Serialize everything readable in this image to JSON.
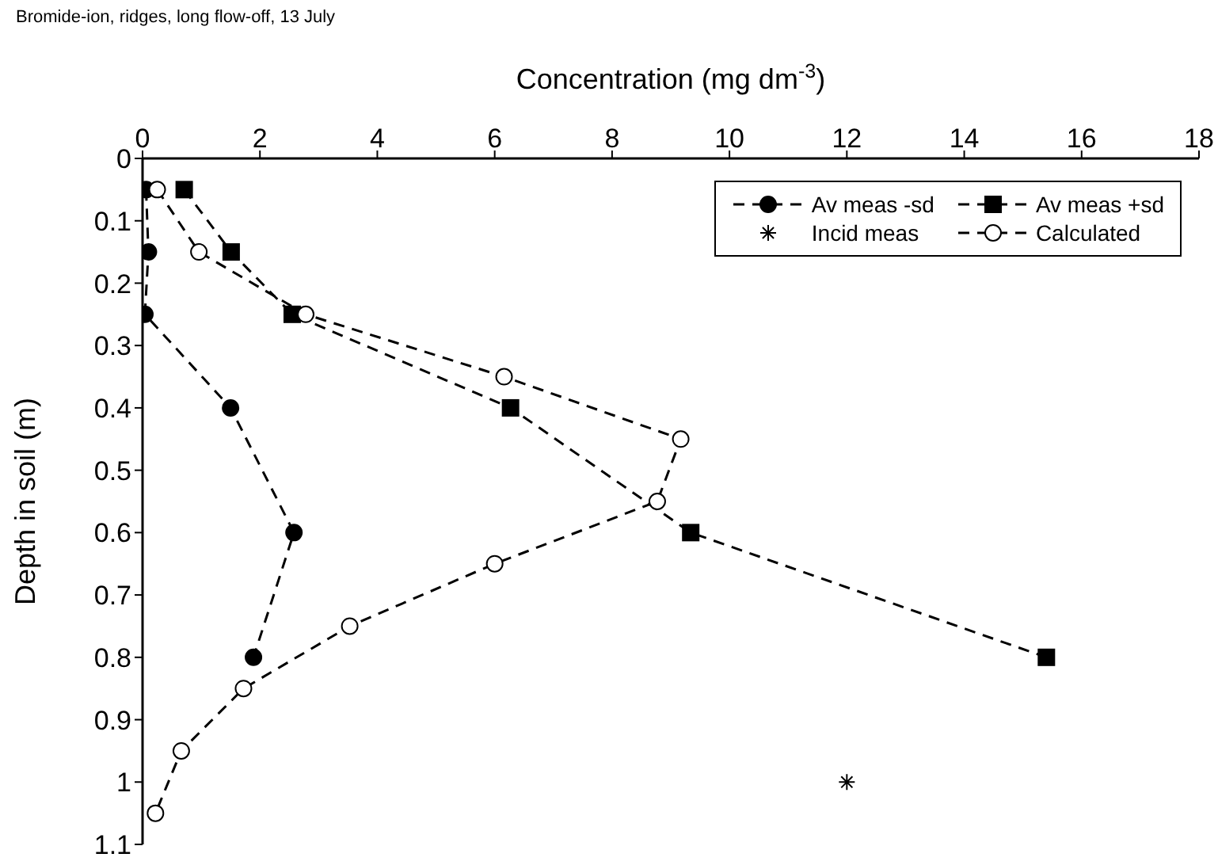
{
  "chart_data": {
    "type": "line",
    "title": "Bromide-ion, ridges, long flow-off, 13 July",
    "xlabel": "Concentration (mg dm$^{-3}$)",
    "ylabel": "Depth in soil (m)",
    "xlim": [
      0,
      18
    ],
    "xticks": [
      0,
      2,
      4,
      6,
      8,
      10,
      12,
      14,
      16,
      18
    ],
    "ylim": [
      1.1,
      0
    ],
    "yticks": [
      0,
      0.1,
      0.2,
      0.3,
      0.4,
      0.5,
      0.6,
      0.7,
      0.8,
      0.9,
      1,
      1.1
    ],
    "grid": false,
    "legend": "top right",
    "line_style": "dashed",
    "series": [
      {
        "name": "Av meas -sd",
        "marker": "circle",
        "color": "#000000",
        "x": [
          0.06,
          0.1,
          0.04,
          1.5,
          2.58,
          1.89
        ],
        "values": [
          0.05,
          0.15,
          0.25,
          0.4,
          0.6,
          0.8
        ]
      },
      {
        "name": "Av meas +sd",
        "marker": "square",
        "color": "#000000",
        "x": [
          0.71,
          1.51,
          2.55,
          6.27,
          9.34,
          15.4
        ],
        "values": [
          0.05,
          0.15,
          0.25,
          0.4,
          0.6,
          0.8
        ]
      },
      {
        "name": "Incid meas",
        "type": "scatter",
        "marker": "cross",
        "color": "#000000",
        "x": [
          12
        ],
        "values": [
          1
        ]
      },
      {
        "name": "Calculated",
        "marker": "circle",
        "color": "#ffffff",
        "x": [
          0.25,
          0.96,
          2.78,
          6.16,
          9.17,
          8.77,
          6.0,
          3.53,
          1.72,
          0.66,
          0.22
        ],
        "values": [
          0.05,
          0.15,
          0.25,
          0.35,
          0.45,
          0.55,
          0.65,
          0.75,
          0.85,
          0.95,
          1.05
        ]
      }
    ]
  }
}
